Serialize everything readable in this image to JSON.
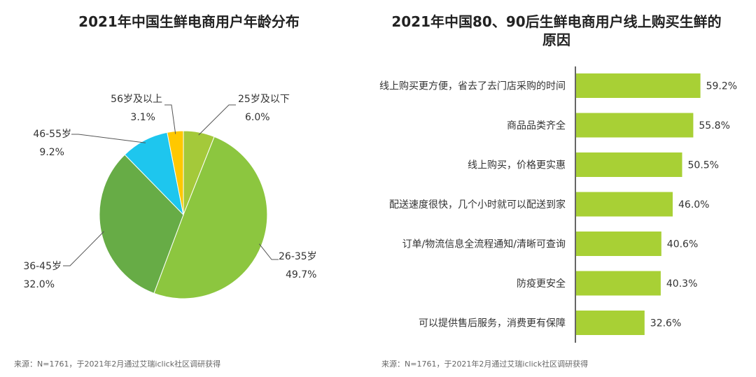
{
  "pie": {
    "title": "2021年中国生鲜电商用户年龄分布",
    "source": "来源：N=1761，于2021年2月通过艾瑞iclick社区调研获得"
  },
  "bar": {
    "title_line1": "2021年中国80、90后生鲜电商用户线上购买生鲜的",
    "title_line2": "原因",
    "source": "来源：N=1761，于2021年2月通过艾瑞iclick社区调研获得"
  },
  "chart_data": [
    {
      "type": "pie",
      "title": "2021年中国生鲜电商用户年龄分布",
      "slices": [
        {
          "label": "25岁及以下",
          "value": 6.0,
          "value_label": "6.0%",
          "color": "#A4C93A"
        },
        {
          "label": "26-35岁",
          "value": 49.7,
          "value_label": "49.7%",
          "color": "#8CC63F"
        },
        {
          "label": "36-45岁",
          "value": 32.0,
          "value_label": "32.0%",
          "color": "#67AC46"
        },
        {
          "label": "46-55岁",
          "value": 9.2,
          "value_label": "9.2%",
          "color": "#1EC6EE"
        },
        {
          "label": "56岁及以上",
          "value": 3.1,
          "value_label": "3.1%",
          "color": "#FFC800"
        }
      ]
    },
    {
      "type": "bar",
      "orientation": "horizontal",
      "title": "2021年中国80、90后生鲜电商用户线上购买生鲜的原因",
      "color": "#A8D035",
      "categories": [
        "线上购买更方便，省去了去门店采购的时间",
        "商品品类齐全",
        "线上购买，价格更实惠",
        "配送速度很快，几个小时就可以配送到家",
        "订单/物流信息全流程通知/清晰可查询",
        "防疫更安全",
        "可以提供售后服务，消费更有保障"
      ],
      "values": [
        59.2,
        55.8,
        50.5,
        46.0,
        40.6,
        40.3,
        32.6
      ],
      "value_labels": [
        "59.2%",
        "55.8%",
        "50.5%",
        "46.0%",
        "40.6%",
        "40.3%",
        "32.6%"
      ],
      "xlim": [
        0,
        100
      ],
      "grid": false
    }
  ]
}
